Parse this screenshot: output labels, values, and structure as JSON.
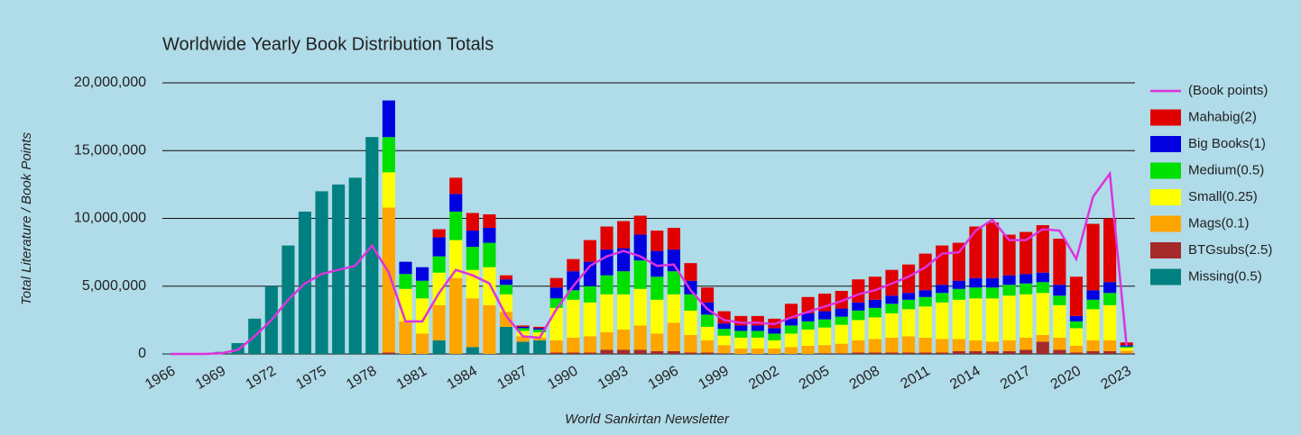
{
  "chart_data": {
    "type": "bar",
    "stacked": true,
    "title": "Worldwide Yearly Book Distribution Totals",
    "x_label": "World Sankirtan Newsletter",
    "y_label": "Total Literature / Book Points",
    "ylim": [
      0,
      20000000
    ],
    "yticks": [
      {
        "value": 0,
        "label": "0"
      },
      {
        "value": 5000000,
        "label": "5,000,000"
      },
      {
        "value": 10000000,
        "label": "10,000,000"
      },
      {
        "value": 15000000,
        "label": "15,000,000"
      },
      {
        "value": 20000000,
        "label": "20,000,000"
      }
    ],
    "grid": true,
    "legend": "right",
    "categories": [
      "1966",
      null,
      null,
      "1969",
      null,
      null,
      "1972",
      null,
      null,
      "1975",
      null,
      null,
      "1978",
      null,
      null,
      "1981",
      null,
      null,
      "1984",
      null,
      null,
      "1987",
      null,
      null,
      "1990",
      null,
      null,
      "1993",
      null,
      null,
      "1996",
      null,
      null,
      "1999",
      null,
      null,
      "2002",
      null,
      null,
      "2005",
      null,
      null,
      "2008",
      null,
      null,
      "2011",
      null,
      null,
      "2014",
      null,
      null,
      "2017",
      null,
      null,
      "2020",
      null,
      null,
      "2023"
    ],
    "series": [
      {
        "name": "(Book points)",
        "type": "line",
        "color": "#dd33dd",
        "values": [
          0,
          0,
          0,
          50000,
          300000,
          1300000,
          2500000,
          4000000,
          5200000,
          5900000,
          6200000,
          6500000,
          8000000,
          6000000,
          2400000,
          2400000,
          4500000,
          6200000,
          5800000,
          5200000,
          2800000,
          1300000,
          1200000,
          3300000,
          5000000,
          6500000,
          7200000,
          7600000,
          7200000,
          6500000,
          6600000,
          4700000,
          3300000,
          2500000,
          2300000,
          2300000,
          2200000,
          2700000,
          3100000,
          3500000,
          3900000,
          4400000,
          4700000,
          5200000,
          5700000,
          6400000,
          7400000,
          7500000,
          9100000,
          9900000,
          8400000,
          8400000,
          9200000,
          9100000,
          7000000,
          11600000,
          13300000,
          600000
        ]
      },
      {
        "name": "Mahabig(2)",
        "color": "#e00000",
        "values": [
          0,
          0,
          0,
          0,
          0,
          0,
          0,
          0,
          0,
          0,
          0,
          0,
          0,
          0,
          0,
          0,
          600000,
          1200000,
          1300000,
          1000000,
          300000,
          100000,
          100000,
          700000,
          900000,
          1600000,
          1700000,
          2000000,
          1400000,
          1500000,
          1600000,
          1300000,
          1100000,
          900000,
          700000,
          700000,
          700000,
          1100000,
          1200000,
          1300000,
          1300000,
          1700000,
          1700000,
          1900000,
          2100000,
          2700000,
          2900000,
          2800000,
          3800000,
          4100000,
          3000000,
          3100000,
          3500000,
          3400000,
          2900000,
          4900000,
          4700000,
          200000
        ]
      },
      {
        "name": "Big Books(1)",
        "color": "#0000e0",
        "values": [
          0,
          0,
          0,
          0,
          0,
          0,
          0,
          0,
          0,
          0,
          0,
          0,
          0,
          2700000,
          900000,
          1000000,
          1400000,
          1300000,
          1200000,
          1100000,
          400000,
          100000,
          100000,
          800000,
          1400000,
          1800000,
          1900000,
          1700000,
          1900000,
          1900000,
          1600000,
          1000000,
          900000,
          400000,
          400000,
          400000,
          400000,
          500000,
          600000,
          600000,
          600000,
          600000,
          600000,
          600000,
          500000,
          500000,
          600000,
          600000,
          700000,
          700000,
          700000,
          700000,
          700000,
          800000,
          400000,
          700000,
          800000,
          100000
        ]
      },
      {
        "name": "Medium(0.5)",
        "color": "#00e000",
        "values": [
          0,
          0,
          0,
          0,
          0,
          0,
          0,
          0,
          0,
          0,
          0,
          0,
          0,
          2600000,
          1100000,
          1300000,
          1200000,
          2100000,
          1700000,
          1800000,
          700000,
          200000,
          200000,
          700000,
          700000,
          1200000,
          1400000,
          1700000,
          2100000,
          1700000,
          1700000,
          1200000,
          900000,
          500000,
          500000,
          500000,
          500000,
          600000,
          600000,
          600000,
          600000,
          700000,
          700000,
          700000,
          700000,
          700000,
          700000,
          800000,
          800000,
          800000,
          800000,
          800000,
          800000,
          700000,
          500000,
          700000,
          900000,
          100000
        ]
      },
      {
        "name": "Small(0.25)",
        "color": "#ffff00",
        "values": [
          0,
          0,
          0,
          0,
          0,
          0,
          0,
          0,
          0,
          0,
          0,
          0,
          0,
          2600000,
          2400000,
          2600000,
          2400000,
          2800000,
          2100000,
          2800000,
          1300000,
          400000,
          400000,
          2400000,
          2800000,
          2500000,
          2800000,
          2600000,
          2700000,
          2500000,
          2100000,
          1800000,
          1000000,
          700000,
          800000,
          800000,
          600000,
          1000000,
          1200000,
          1300000,
          1400000,
          1500000,
          1600000,
          1800000,
          2000000,
          2300000,
          2700000,
          2900000,
          3100000,
          3200000,
          3300000,
          3200000,
          3100000,
          2400000,
          1300000,
          2300000,
          2600000,
          200000
        ]
      },
      {
        "name": "Mags(0.1)",
        "color": "#ffa500",
        "values": [
          0,
          0,
          0,
          0,
          0,
          0,
          0,
          0,
          0,
          0,
          0,
          0,
          0,
          10700000,
          2400000,
          1500000,
          2600000,
          5600000,
          3600000,
          3600000,
          1100000,
          400000,
          200000,
          900000,
          1100000,
          1200000,
          1300000,
          1500000,
          1800000,
          1300000,
          2100000,
          1300000,
          900000,
          600000,
          400000,
          400000,
          400000,
          500000,
          600000,
          600000,
          700000,
          900000,
          1000000,
          1100000,
          1200000,
          1100000,
          1000000,
          900000,
          800000,
          700000,
          800000,
          900000,
          500000,
          900000,
          500000,
          800000,
          800000,
          200000
        ]
      },
      {
        "name": "BTGsubs(2.5)",
        "color": "#a52a2a",
        "values": [
          0,
          0,
          0,
          0,
          0,
          0,
          0,
          0,
          0,
          0,
          0,
          0,
          0,
          100000,
          0,
          0,
          0,
          0,
          0,
          0,
          0,
          0,
          0,
          100000,
          100000,
          100000,
          300000,
          300000,
          300000,
          200000,
          200000,
          100000,
          100000,
          50000,
          0,
          0,
          0,
          0,
          0,
          50000,
          50000,
          100000,
          100000,
          100000,
          100000,
          100000,
          100000,
          200000,
          200000,
          200000,
          200000,
          300000,
          900000,
          300000,
          100000,
          200000,
          200000,
          50000
        ]
      },
      {
        "name": "Missing(0.5)",
        "color": "#008080",
        "values": [
          20000,
          30000,
          50000,
          150000,
          800000,
          2600000,
          5000000,
          8000000,
          10500000,
          12000000,
          12500000,
          13000000,
          16000000,
          0,
          0,
          0,
          1000000,
          0,
          500000,
          0,
          2000000,
          900000,
          1000000,
          0,
          0,
          0,
          0,
          0,
          0,
          0,
          0,
          0,
          0,
          0,
          0,
          0,
          0,
          0,
          0,
          0,
          0,
          0,
          0,
          0,
          0,
          0,
          0,
          0,
          0,
          0,
          0,
          0,
          0,
          0,
          0,
          0,
          0,
          0
        ]
      }
    ]
  }
}
